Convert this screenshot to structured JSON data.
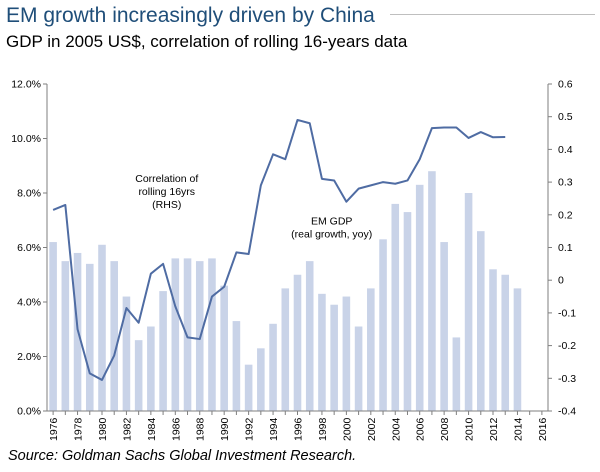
{
  "header": {
    "title": "EM growth increasingly driven by China",
    "subtitle": "GDP in 2005 US$, correlation of rolling 16-years data"
  },
  "footer": {
    "source": "Source:  Goldman Sachs Global Investment Research."
  },
  "colors": {
    "bar": "#c9d3e8",
    "line": "#4f6ca3",
    "title": "#1f4e79"
  },
  "chart_data": {
    "type": "bar",
    "title": "EM growth increasingly driven by China",
    "subtitle": "GDP in 2005 US$, correlation of rolling 16-years data",
    "x": [
      1976,
      1977,
      1978,
      1979,
      1980,
      1981,
      1982,
      1983,
      1984,
      1985,
      1986,
      1987,
      1988,
      1989,
      1990,
      1991,
      1992,
      1993,
      1994,
      1995,
      1996,
      1997,
      1998,
      1999,
      2000,
      2001,
      2002,
      2003,
      2004,
      2005,
      2006,
      2007,
      2008,
      2009,
      2010,
      2011,
      2012,
      2013,
      2014
    ],
    "x_tick_labels": [
      "1976",
      "1978",
      "1980",
      "1982",
      "1984",
      "1986",
      "1988",
      "1990",
      "1992",
      "1994",
      "1996",
      "1998",
      "2000",
      "2002",
      "2004",
      "2006",
      "2008",
      "2010",
      "2012",
      "2014",
      "2016"
    ],
    "x_ticks": [
      1976,
      1978,
      1980,
      1982,
      1984,
      1986,
      1988,
      1990,
      1992,
      1994,
      1996,
      1998,
      2000,
      2002,
      2004,
      2006,
      2008,
      2010,
      2012,
      2014,
      2016
    ],
    "ylim_left": [
      0,
      12
    ],
    "ylim_right": [
      -0.4,
      0.6
    ],
    "y_left_ticks": [
      0,
      2,
      4,
      6,
      8,
      10,
      12
    ],
    "y_left_labels": [
      "0.0%",
      "2.0%",
      "4.0%",
      "6.0%",
      "8.0%",
      "10.0%",
      "12.0%"
    ],
    "y_right_ticks": [
      -0.4,
      -0.3,
      -0.2,
      -0.1,
      0,
      0.1,
      0.2,
      0.3,
      0.4,
      0.5,
      0.6
    ],
    "y_right_labels": [
      "-0.4",
      "-0.3",
      "-0.2",
      "-0.1",
      "0",
      "0.1",
      "0.2",
      "0.3",
      "0.4",
      "0.5",
      "0.6"
    ],
    "grid": false,
    "series": [
      {
        "name": "EM GDP (real growth, yoy)",
        "type": "bar",
        "axis": "left",
        "x": [
          1976,
          1977,
          1978,
          1979,
          1980,
          1981,
          1982,
          1983,
          1984,
          1985,
          1986,
          1987,
          1988,
          1989,
          1990,
          1991,
          1992,
          1993,
          1994,
          1995,
          1996,
          1997,
          1998,
          1999,
          2000,
          2001,
          2002,
          2003,
          2004,
          2005,
          2006,
          2007,
          2008,
          2009,
          2010,
          2011,
          2012,
          2013,
          2014
        ],
        "values": [
          6.2,
          5.5,
          5.8,
          5.4,
          6.1,
          5.5,
          4.2,
          2.6,
          3.1,
          4.4,
          5.6,
          5.6,
          5.5,
          5.6,
          4.6,
          3.3,
          1.7,
          2.3,
          3.2,
          4.5,
          5.0,
          5.5,
          4.3,
          3.9,
          4.2,
          3.1,
          4.5,
          6.3,
          7.6,
          7.3,
          8.3,
          8.8,
          6.2,
          2.7,
          8.0,
          6.6,
          5.2,
          5.0,
          4.5
        ]
      },
      {
        "name": "Correlation of rolling 16yrs (RHS)",
        "type": "line",
        "axis": "right",
        "x": [
          1976,
          1977,
          1978,
          1979,
          1980,
          1981,
          1982,
          1983,
          1984,
          1985,
          1986,
          1987,
          1988,
          1989,
          1990,
          1991,
          1992,
          1993,
          1994,
          1995,
          1996,
          1997,
          1998,
          1999,
          2000,
          2001,
          2002,
          2003,
          2004,
          2005,
          2006,
          2007,
          2008,
          2009,
          2010,
          2011,
          2012,
          2013
        ],
        "values": [
          0.215,
          0.23,
          -0.15,
          -0.285,
          -0.305,
          -0.23,
          -0.085,
          -0.13,
          0.02,
          0.05,
          -0.08,
          -0.175,
          -0.18,
          -0.05,
          -0.02,
          0.085,
          0.08,
          0.29,
          0.385,
          0.37,
          0.49,
          0.48,
          0.31,
          0.305,
          0.24,
          0.28,
          0.29,
          0.3,
          0.295,
          0.305,
          0.37,
          0.465,
          0.467,
          0.467,
          0.435,
          0.453,
          0.437,
          0.438
        ]
      }
    ],
    "annotations": [
      {
        "lines": [
          "Correlation of",
          "rolling 16yrs",
          "(RHS)"
        ],
        "x": 1985.3,
        "y_right": 0.3
      },
      {
        "lines": [
          "EM GDP",
          "(real growth, yoy)"
        ],
        "x": 1998.8,
        "y_right": 0.17
      }
    ]
  }
}
